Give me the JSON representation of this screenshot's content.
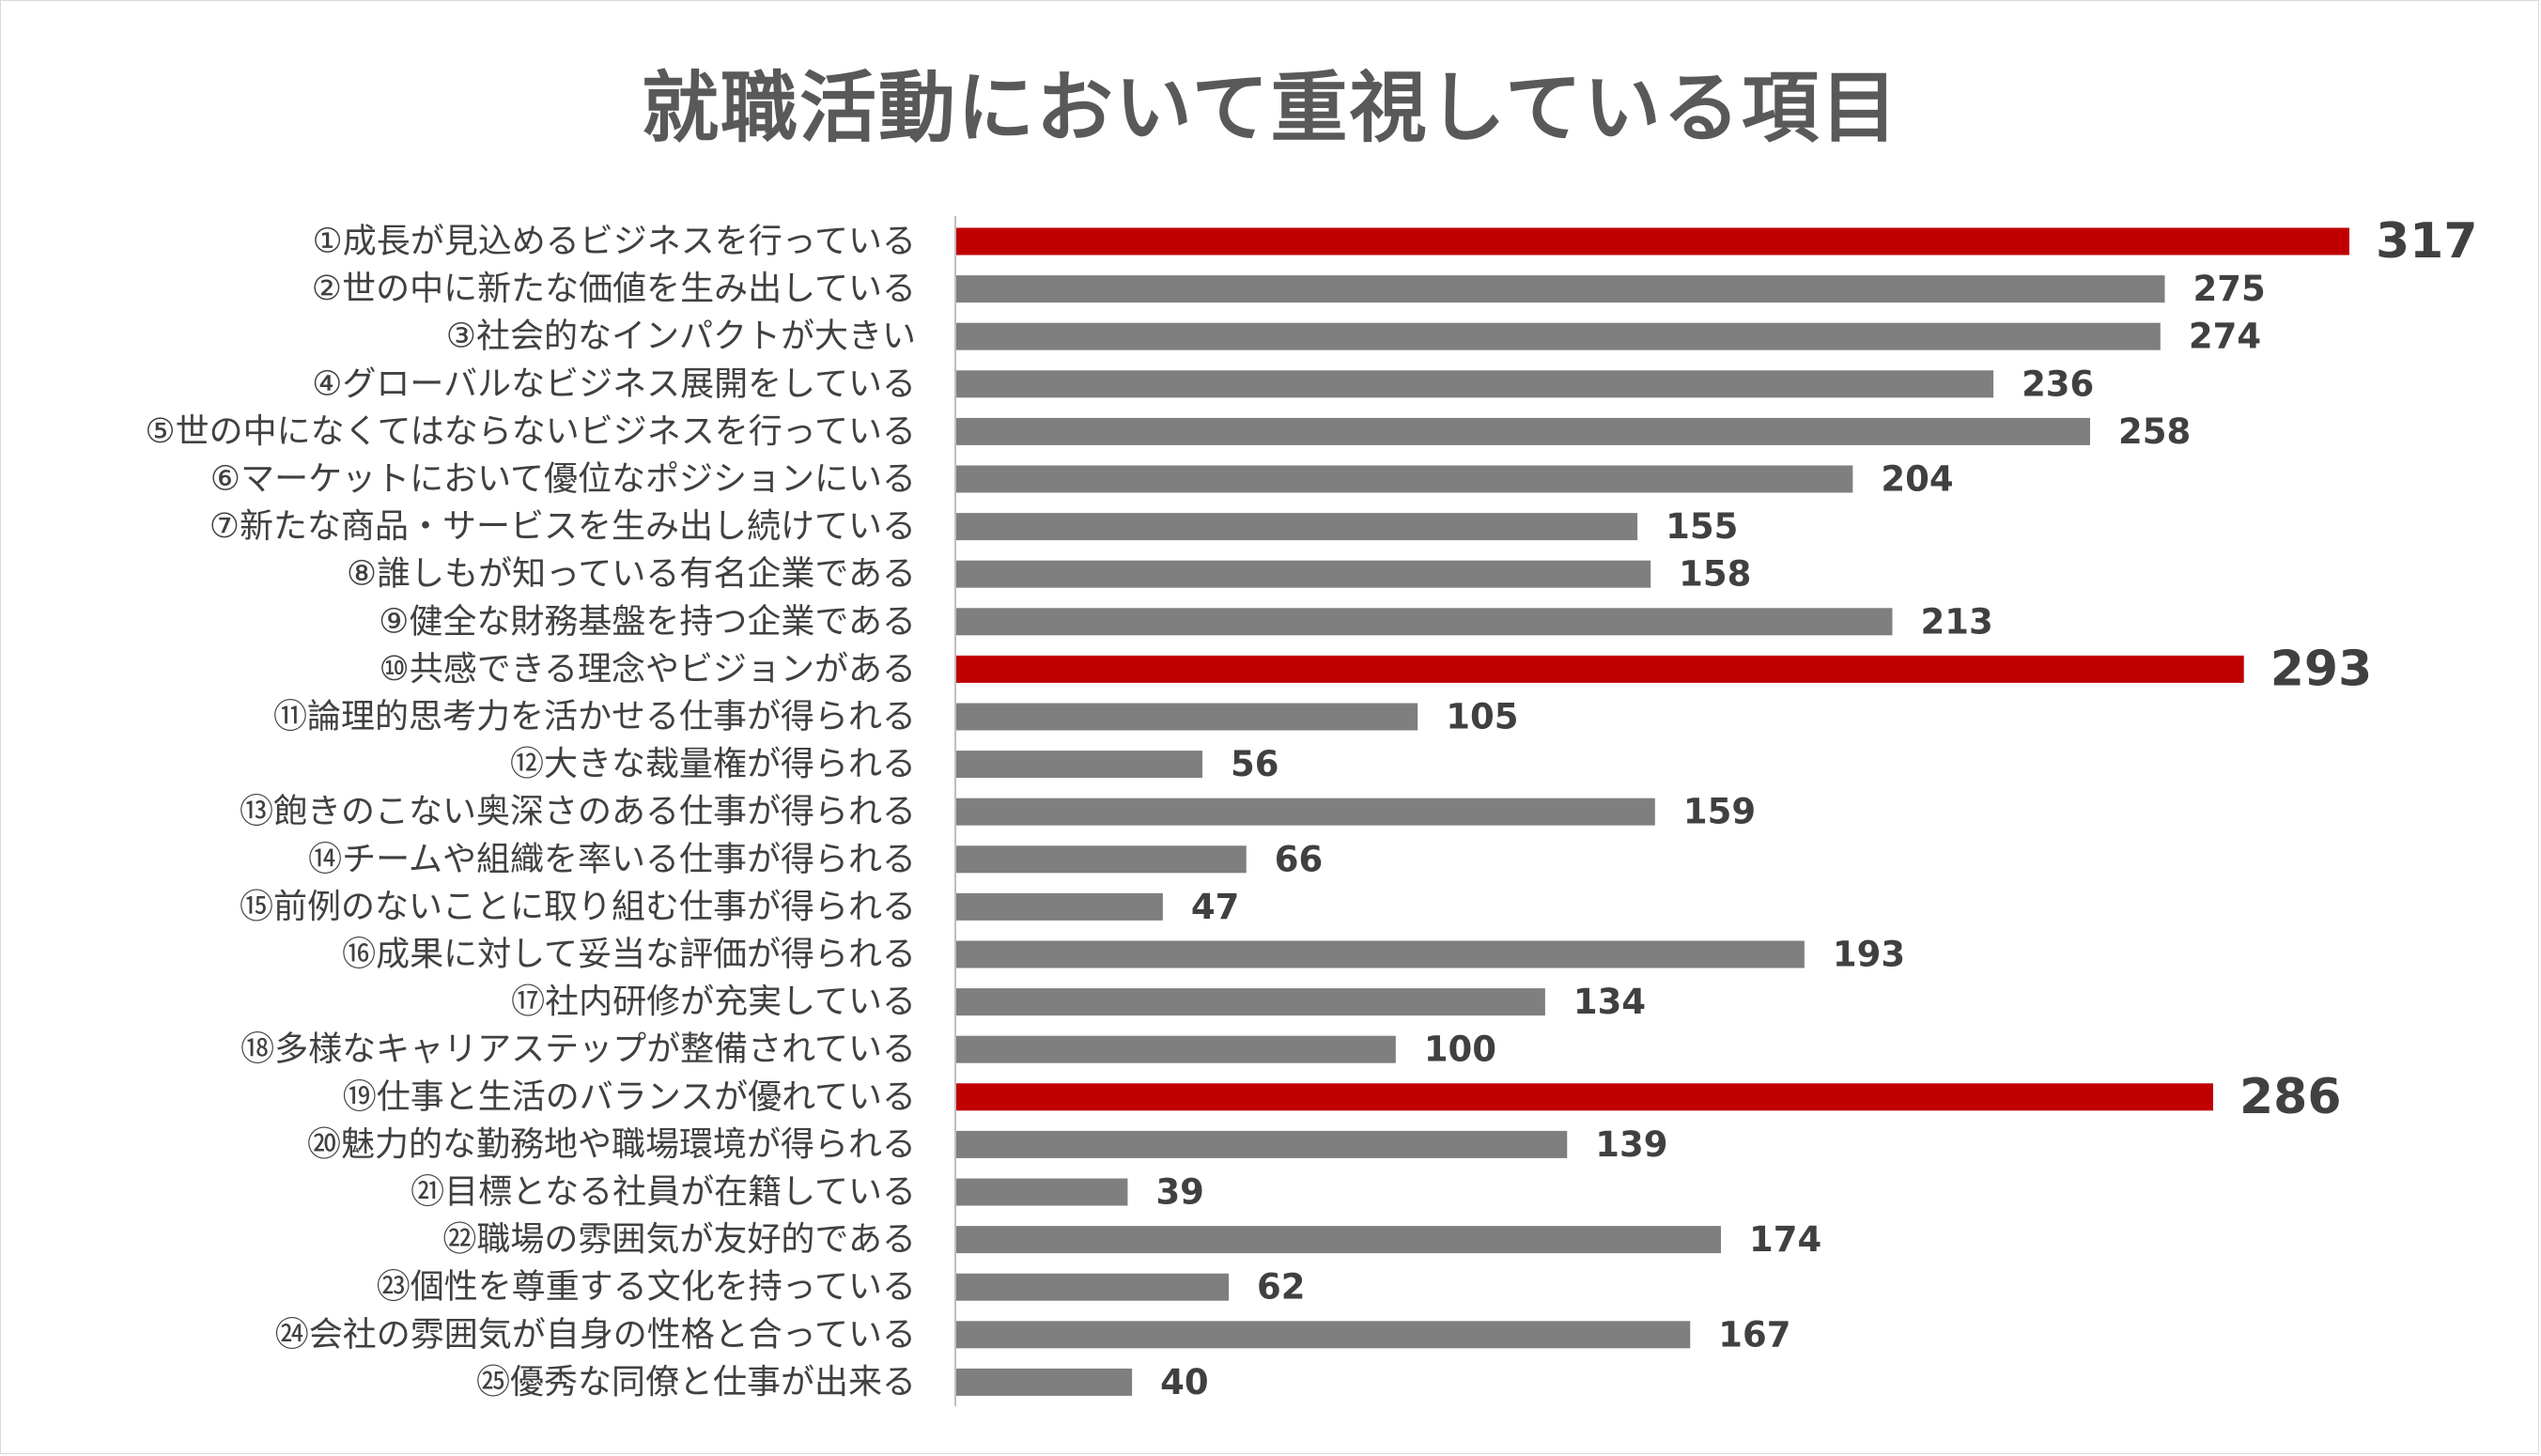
{
  "chart_data": {
    "type": "bar",
    "orientation": "horizontal",
    "title": "就職活動において重視している項目",
    "categories": [
      "①成長が見込めるビジネスを行っている",
      "②世の中に新たな価値を生み出している",
      "③社会的なインパクトが大きい",
      "④グローバルなビジネス展開をしている",
      "⑤世の中になくてはならないビジネスを行っている",
      "⑥マーケットにおいて優位なポジションにいる",
      "⑦新たな商品・サービスを生み出し続けている",
      "⑧誰しもが知っている有名企業である",
      "⑨健全な財務基盤を持つ企業である",
      "⑩共感できる理念やビジョンがある",
      "⑪論理的思考力を活かせる仕事が得られる",
      "⑫大きな裁量権が得られる",
      "⑬飽きのこない奥深さのある仕事が得られる",
      "⑭チームや組織を率いる仕事が得られる",
      "⑮前例のないことに取り組む仕事が得られる",
      "⑯成果に対して妥当な評価が得られる",
      "⑰社内研修が充実している",
      "⑱多様なキャリアステップが整備されている",
      "⑲仕事と生活のバランスが優れている",
      "⑳魅力的な勤務地や職場環境が得られる",
      "㉑目標となる社員が在籍している",
      "㉒職場の雰囲気が友好的である",
      "㉓個性を尊重する文化を持っている",
      "㉔会社の雰囲気が自身の性格と合っている",
      "㉕優秀な同僚と仕事が出来る"
    ],
    "values": [
      317,
      275,
      274,
      236,
      258,
      204,
      155,
      158,
      213,
      293,
      105,
      56,
      159,
      66,
      47,
      193,
      134,
      100,
      286,
      139,
      39,
      174,
      62,
      167,
      40
    ],
    "highlighted": [
      true,
      false,
      false,
      false,
      false,
      false,
      false,
      false,
      false,
      true,
      false,
      false,
      false,
      false,
      false,
      false,
      false,
      false,
      true,
      false,
      false,
      false,
      false,
      false,
      false
    ],
    "xlim": [
      0,
      317
    ],
    "grid": false,
    "legend": "none",
    "colors": {
      "bar": "#7f7f7f",
      "highlight": "#c00000",
      "text": "#404040",
      "title": "#595959",
      "axis": "#bfbfbf"
    }
  }
}
